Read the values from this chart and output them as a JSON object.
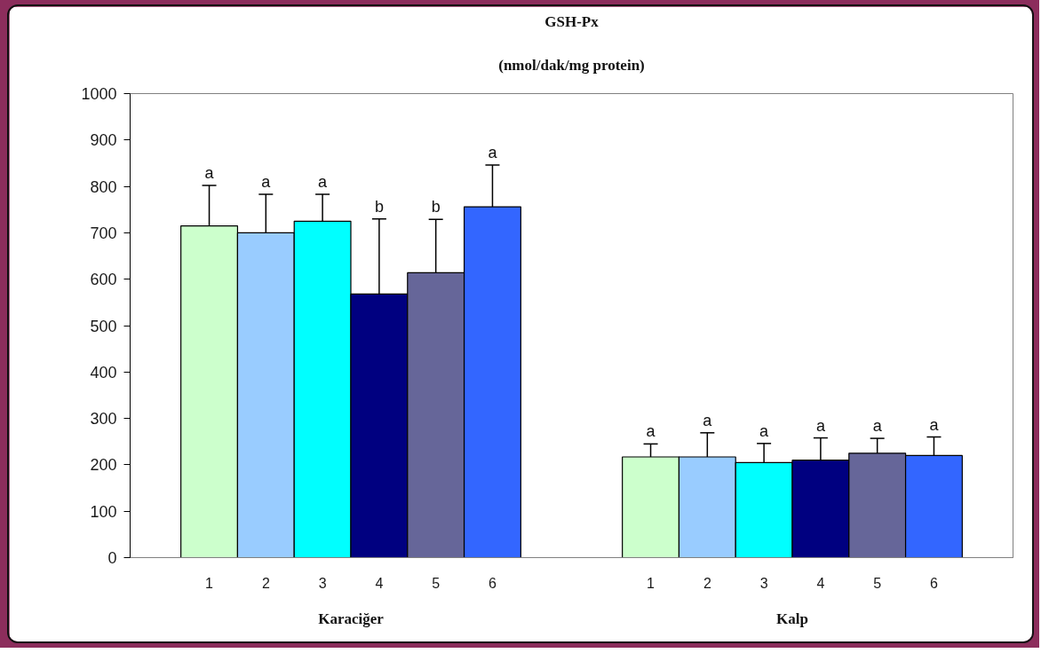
{
  "chart_data": {
    "type": "bar",
    "title": "GSH-Px",
    "subtitle": "(nmol/dak/mg protein)",
    "categories": [
      "Karaciğer",
      "Kalp"
    ],
    "series": [
      {
        "name": "1",
        "color": "#ccffcc",
        "values": [
          715,
          217
        ],
        "errors": [
          87,
          28
        ]
      },
      {
        "name": "2",
        "color": "#99ccff",
        "values": [
          700,
          217
        ],
        "errors": [
          83,
          52
        ]
      },
      {
        "name": "3",
        "color": "#00ffff",
        "values": [
          725,
          205
        ],
        "errors": [
          58,
          41
        ]
      },
      {
        "name": "4",
        "color": "#000080",
        "values": [
          568,
          210
        ],
        "errors": [
          162,
          48
        ]
      },
      {
        "name": "5",
        "color": "#666699",
        "values": [
          614,
          225
        ],
        "errors": [
          115,
          32
        ]
      },
      {
        "name": "6",
        "color": "#3366ff",
        "values": [
          756,
          220
        ],
        "errors": [
          90,
          40
        ]
      }
    ],
    "annotations": [
      "a",
      "a",
      "a",
      "b",
      "b",
      "a",
      "a",
      "a",
      "a",
      "a",
      "a",
      "a"
    ],
    "ylim": [
      0,
      1000
    ],
    "yticks": [
      0,
      100,
      200,
      300,
      400,
      500,
      600,
      700,
      800,
      900,
      1000
    ],
    "grid": false,
    "legend": false
  }
}
